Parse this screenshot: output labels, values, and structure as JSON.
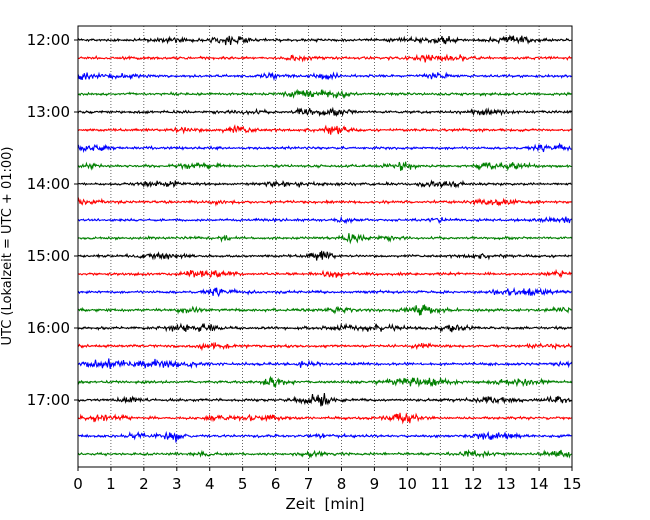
{
  "chart_data": {
    "type": "line",
    "title": "",
    "xlabel": "Zeit  [min]",
    "ylabel": "UTC (Lokalzeit = UTC + 01:00)",
    "xlim": [
      0,
      15
    ],
    "x_ticks": [
      "0",
      "1",
      "2",
      "3",
      "4",
      "5",
      "6",
      "7",
      "8",
      "9",
      "10",
      "11",
      "12",
      "13",
      "14",
      "15"
    ],
    "y_ticks": [
      "12:00",
      "13:00",
      "14:00",
      "15:00",
      "16:00",
      "17:00"
    ],
    "grid": "vertical dotted",
    "trace_colors": [
      "#000000",
      "#ff0000",
      "#0000ff",
      "#008000"
    ],
    "trace_interval_minutes": 15,
    "trace_count": 24,
    "traces": [
      {
        "start": "12:00",
        "color": "#000000"
      },
      {
        "start": "12:15",
        "color": "#ff0000"
      },
      {
        "start": "12:30",
        "color": "#0000ff"
      },
      {
        "start": "12:45",
        "color": "#008000"
      },
      {
        "start": "13:00",
        "color": "#000000"
      },
      {
        "start": "13:15",
        "color": "#ff0000"
      },
      {
        "start": "13:30",
        "color": "#0000ff"
      },
      {
        "start": "13:45",
        "color": "#008000"
      },
      {
        "start": "14:00",
        "color": "#000000"
      },
      {
        "start": "14:15",
        "color": "#ff0000"
      },
      {
        "start": "14:30",
        "color": "#0000ff"
      },
      {
        "start": "14:45",
        "color": "#008000"
      },
      {
        "start": "15:00",
        "color": "#000000"
      },
      {
        "start": "15:15",
        "color": "#ff0000"
      },
      {
        "start": "15:30",
        "color": "#0000ff"
      },
      {
        "start": "15:45",
        "color": "#008000"
      },
      {
        "start": "16:00",
        "color": "#000000"
      },
      {
        "start": "16:15",
        "color": "#ff0000"
      },
      {
        "start": "16:30",
        "color": "#0000ff"
      },
      {
        "start": "16:45",
        "color": "#008000"
      },
      {
        "start": "17:00",
        "color": "#000000"
      },
      {
        "start": "17:15",
        "color": "#ff0000"
      },
      {
        "start": "17:30",
        "color": "#0000ff"
      },
      {
        "start": "17:45",
        "color": "#008000"
      }
    ]
  }
}
